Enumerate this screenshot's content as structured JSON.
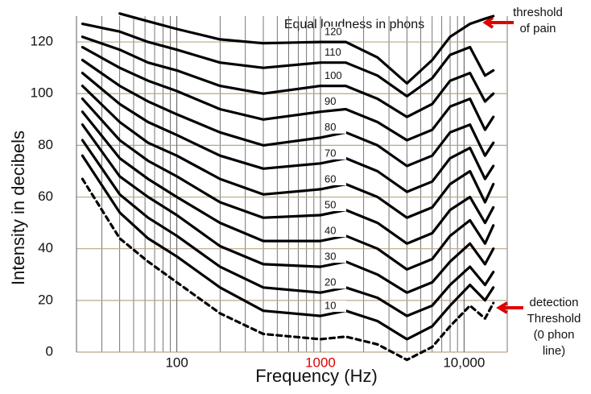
{
  "chart_data": {
    "type": "line",
    "title": "Equal loudness in phons",
    "x_label": "Frequency (Hz)",
    "y_label": "Intensity in decibels",
    "x_log": true,
    "grid": true,
    "xlim": [
      20,
      20000
    ],
    "ylim": [
      0,
      130
    ],
    "xticks": [
      100,
      1000,
      {
        "value": 10000,
        "label": "10,000"
      }
    ],
    "yticks": [
      0,
      20,
      40,
      60,
      80,
      100,
      120
    ],
    "x": [
      22,
      40,
      63,
      100,
      200,
      400,
      1000,
      1500,
      2500,
      4000,
      6000,
      8000,
      11000,
      14000,
      16000
    ],
    "series": [
      {
        "name": "120",
        "color": "#000000",
        "values": [
          null,
          131,
          128,
          125,
          121,
          119.5,
          120,
          120,
          114,
          104,
          113,
          122,
          127,
          129,
          130
        ]
      },
      {
        "name": "110",
        "color": "#000000",
        "values": [
          127,
          124,
          120,
          117,
          112,
          110,
          112,
          112,
          107,
          99,
          106,
          115,
          118,
          107,
          109
        ]
      },
      {
        "name": "100",
        "color": "#000000",
        "values": [
          122,
          117,
          112,
          109,
          103,
          100,
          103,
          103,
          98,
          91,
          96,
          105,
          108,
          97,
          100
        ]
      },
      {
        "name": "90",
        "color": "#000000",
        "values": [
          118,
          110,
          105,
          101,
          94,
          90,
          93,
          94,
          89,
          82,
          86,
          95,
          98,
          86,
          91
        ]
      },
      {
        "name": "80",
        "color": "#000000",
        "values": [
          113,
          103,
          97,
          92,
          85,
          80,
          83,
          85,
          80,
          72,
          76,
          85,
          88,
          76,
          81
        ]
      },
      {
        "name": "70",
        "color": "#000000",
        "values": [
          108,
          96,
          89,
          84,
          76,
          71,
          73,
          75,
          70,
          62,
          66,
          75,
          79,
          67,
          72
        ]
      },
      {
        "name": "60",
        "color": "#000000",
        "values": [
          103,
          89,
          81,
          76,
          67,
          61,
          63,
          65,
          60,
          52,
          56,
          65,
          70,
          58,
          65
        ]
      },
      {
        "name": "50",
        "color": "#000000",
        "values": [
          98,
          82,
          74,
          68,
          58,
          52,
          53,
          55,
          50,
          42,
          46,
          55,
          60,
          50,
          56
        ]
      },
      {
        "name": "40",
        "color": "#000000",
        "values": [
          93,
          75,
          67,
          60,
          50,
          43,
          43,
          45,
          40,
          32,
          36,
          45,
          51,
          42,
          49
        ]
      },
      {
        "name": "30",
        "color": "#000000",
        "values": [
          88,
          68,
          60,
          53,
          41,
          34,
          33,
          35,
          30,
          23,
          27,
          35,
          42,
          34,
          40
        ]
      },
      {
        "name": "20",
        "color": "#000000",
        "values": [
          82,
          61,
          52,
          45,
          33,
          25,
          23,
          25,
          21,
          14,
          18,
          26,
          33,
          26,
          31
        ]
      },
      {
        "name": "10",
        "color": "#000000",
        "values": [
          76,
          54,
          44,
          37,
          25,
          16,
          14,
          16,
          12,
          5,
          10,
          18,
          26,
          20,
          25
        ]
      },
      {
        "color": "#000000",
        "dashed": true,
        "values": [
          67,
          44,
          35,
          27,
          15,
          7,
          5,
          6,
          3,
          -3,
          2,
          10,
          18,
          13,
          19
        ]
      }
    ],
    "annotations": [
      [
        "threshold",
        "of pain"
      ],
      [
        "detection",
        "Threshold",
        "(0 phon",
        "line)"
      ]
    ]
  }
}
